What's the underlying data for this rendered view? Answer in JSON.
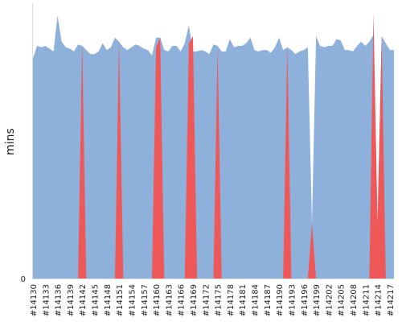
{
  "chart_data": {
    "type": "area",
    "title": "",
    "xlabel": "",
    "ylabel": "mins",
    "ylim": [
      0,
      100
    ],
    "yticks": [
      0
    ],
    "grid": false,
    "legend": "none",
    "x_labels": [
      "#14130",
      "#14133",
      "#14136",
      "#14139",
      "#14142",
      "#14145",
      "#14148",
      "#14151",
      "#14154",
      "#14157",
      "#14160",
      "#14163",
      "#14166",
      "#14169",
      "#14172",
      "#14175",
      "#14178",
      "#14181",
      "#14184",
      "#14187",
      "#14190",
      "#14193",
      "#14196",
      "#14199",
      "#14202",
      "#14205",
      "#14208",
      "#14211",
      "#14214",
      "#14217"
    ],
    "x_start": 14130,
    "x_end": 14218,
    "series": [
      {
        "color": "#8eb1db",
        "values": [
          [
            14130,
            80
          ],
          [
            14131,
            84.5
          ],
          [
            14132,
            84
          ],
          [
            14133,
            84.5
          ],
          [
            14134,
            83.5
          ],
          [
            14135,
            82.5
          ],
          [
            14136,
            95.5
          ],
          [
            14137,
            86
          ],
          [
            14138,
            84
          ],
          [
            14139,
            83.5
          ],
          [
            14140,
            82.5
          ],
          [
            14141,
            85
          ],
          [
            14142,
            84.5
          ],
          [
            14143,
            83
          ],
          [
            14144,
            81.5
          ],
          [
            14145,
            81.5
          ],
          [
            14146,
            82.5
          ],
          [
            14147,
            85.5
          ],
          [
            14148,
            83
          ],
          [
            14149,
            84
          ],
          [
            14150,
            87.5
          ],
          [
            14151,
            86
          ],
          [
            14152,
            84
          ],
          [
            14153,
            83
          ],
          [
            14154,
            84
          ],
          [
            14155,
            85
          ],
          [
            14156,
            84.5
          ],
          [
            14157,
            83.5
          ],
          [
            14158,
            83
          ],
          [
            14159,
            81
          ],
          [
            14160,
            87.5
          ],
          [
            14161,
            87.5
          ],
          [
            14162,
            83
          ],
          [
            14163,
            82.5
          ],
          [
            14164,
            84.5
          ],
          [
            14165,
            84.5
          ],
          [
            14166,
            82.5
          ],
          [
            14167,
            85.5
          ],
          [
            14168,
            92
          ],
          [
            14169,
            82.5
          ],
          [
            14170,
            82.5
          ],
          [
            14171,
            83
          ],
          [
            14172,
            82.5
          ],
          [
            14173,
            81.5
          ],
          [
            14174,
            85
          ],
          [
            14175,
            84.5
          ],
          [
            14176,
            82.5
          ],
          [
            14177,
            82.5
          ],
          [
            14178,
            87
          ],
          [
            14179,
            84
          ],
          [
            14180,
            84.5
          ],
          [
            14181,
            84.5
          ],
          [
            14182,
            85.5
          ],
          [
            14183,
            87.5
          ],
          [
            14184,
            83
          ],
          [
            14185,
            82.5
          ],
          [
            14186,
            83
          ],
          [
            14187,
            83
          ],
          [
            14188,
            82
          ],
          [
            14189,
            84
          ],
          [
            14190,
            87.5
          ],
          [
            14191,
            83
          ],
          [
            14192,
            84
          ],
          [
            14193,
            83
          ],
          [
            14194,
            81.5
          ],
          [
            14195,
            82.5
          ],
          [
            14196,
            83
          ],
          [
            14197,
            84
          ],
          [
            14198,
            20
          ],
          [
            14199,
            88
          ],
          [
            14200,
            84.5
          ],
          [
            14201,
            84
          ],
          [
            14202,
            84.5
          ],
          [
            14203,
            84.5
          ],
          [
            14204,
            87
          ],
          [
            14205,
            86.5
          ],
          [
            14206,
            83
          ],
          [
            14207,
            83
          ],
          [
            14208,
            82.5
          ],
          [
            14209,
            84.5
          ],
          [
            14210,
            86
          ],
          [
            14211,
            84.5
          ],
          [
            14212,
            86
          ],
          [
            14213,
            88.5
          ],
          [
            14214,
            20
          ],
          [
            14215,
            88
          ],
          [
            14216,
            85.5
          ],
          [
            14217,
            83
          ],
          [
            14218,
            83
          ]
        ]
      },
      {
        "color": "#ef5858",
        "values": [
          [
            14139,
            0
          ],
          [
            14140,
            0
          ],
          [
            14141,
            0
          ],
          [
            14142,
            86
          ],
          [
            14143,
            0
          ],
          [
            14150,
            0
          ],
          [
            14151,
            87
          ],
          [
            14152,
            0
          ],
          [
            14158,
            0
          ],
          [
            14159,
            0
          ],
          [
            14160,
            84
          ],
          [
            14161,
            87.5
          ],
          [
            14162,
            0
          ],
          [
            14167,
            0
          ],
          [
            14168,
            85.5
          ],
          [
            14169,
            88
          ],
          [
            14170,
            0
          ],
          [
            14174,
            0
          ],
          [
            14175,
            84.5
          ],
          [
            14176,
            0
          ],
          [
            14190,
            0
          ],
          [
            14191,
            0
          ],
          [
            14192,
            85
          ],
          [
            14193,
            0
          ],
          [
            14197,
            0
          ],
          [
            14198,
            20
          ],
          [
            14199,
            0
          ],
          [
            14212,
            0
          ],
          [
            14213,
            96.5
          ],
          [
            14214,
            20
          ],
          [
            14215,
            88
          ],
          [
            14216,
            0
          ]
        ]
      }
    ]
  }
}
